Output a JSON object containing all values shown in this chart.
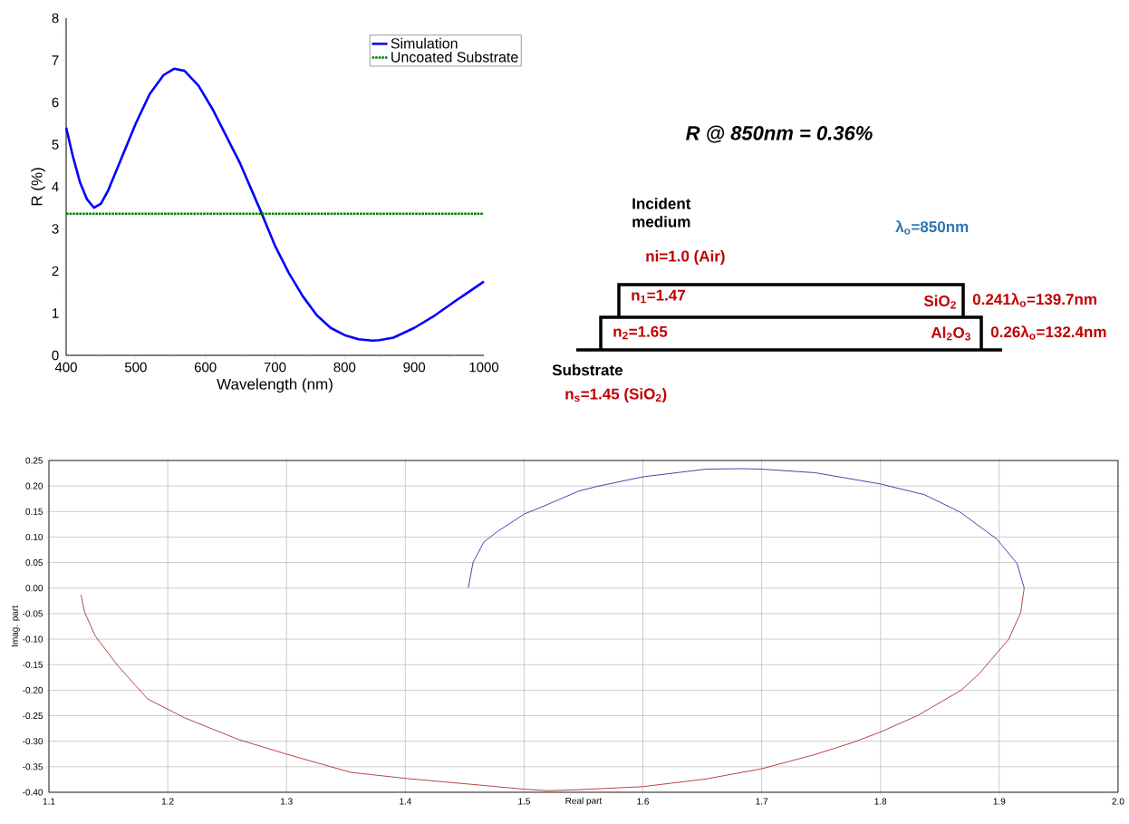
{
  "chart_data": [
    {
      "type": "line",
      "xlabel": "Wavelength (nm)",
      "ylabel": "R (%)",
      "xlim": [
        400,
        1000
      ],
      "ylim": [
        0,
        8
      ],
      "xticks": [
        400,
        500,
        600,
        700,
        800,
        900,
        1000
      ],
      "yticks": [
        0,
        1,
        2,
        3,
        4,
        5,
        6,
        7,
        8
      ],
      "legend": "top right",
      "series": [
        {
          "name": "Simulation",
          "color": "#0000ff",
          "line_style": "solid",
          "x": [
            400,
            410,
            420,
            430,
            440,
            450,
            460,
            480,
            500,
            520,
            540,
            555,
            570,
            590,
            610,
            630,
            650,
            680,
            700,
            720,
            740,
            760,
            780,
            800,
            820,
            840,
            850,
            870,
            900,
            930,
            960,
            1000
          ],
          "values": [
            5.4,
            4.7,
            4.1,
            3.7,
            3.5,
            3.6,
            3.9,
            4.7,
            5.5,
            6.2,
            6.65,
            6.8,
            6.75,
            6.4,
            5.85,
            5.2,
            4.55,
            3.4,
            2.6,
            1.95,
            1.4,
            0.95,
            0.65,
            0.48,
            0.38,
            0.35,
            0.36,
            0.42,
            0.65,
            0.95,
            1.3,
            1.75
          ]
        },
        {
          "name": "Uncoated Substrate",
          "color": "#008000",
          "line_style": "dotted",
          "x": [
            400,
            1000
          ],
          "values": [
            3.36,
            3.36
          ]
        }
      ]
    },
    {
      "type": "other",
      "annotations": [
        "R @ 850nm = 0.36%",
        "Incident medium",
        "ni=1.0 (Air)",
        "λ$_{o}$=850nm",
        "n$_{1}$=1.47",
        "SiO$_{2}$",
        "0.241λ$_{o}$=139.7nm",
        "n$_{2}$=1.65",
        "Al$_{2}$O$_{3}$",
        "0.26λ$_{o}$=132.4nm",
        "Substrate",
        "n$_{s}$=1.45 (SiO$_{2}$)"
      ]
    },
    {
      "type": "line",
      "xlabel": "Real part",
      "ylabel": "Imag. part",
      "xlim": [
        1.1,
        2.0
      ],
      "ylim": [
        -0.4,
        0.25
      ],
      "grid": true,
      "xticks": [
        1.1,
        1.2,
        1.3,
        1.4,
        1.5,
        1.6,
        1.7,
        1.8,
        1.9,
        {
          "value": 2.0,
          "label": "2.0"
        }
      ],
      "yticks": [
        {
          "value": -0.4,
          "label": "-0.40"
        },
        -0.35,
        {
          "value": -0.3,
          "label": "-0.30"
        },
        -0.25,
        {
          "value": -0.2,
          "label": "-0.20"
        },
        -0.15,
        {
          "value": -0.1,
          "label": "-0.10"
        },
        -0.05,
        {
          "value": 0,
          "label": "0.00"
        },
        0.05,
        {
          "value": 0.1,
          "label": "0.10"
        },
        0.15,
        {
          "value": 0.2,
          "label": "0.20"
        },
        0.25
      ],
      "series": [
        {
          "color": "#3333a0",
          "x": [
            1.453,
            1.457,
            1.466,
            1.477,
            1.5,
            1.519,
            1.53,
            1.546,
            1.561,
            1.6,
            1.653,
            1.684,
            1.7,
            1.745,
            1.8,
            1.837,
            1.867,
            1.898,
            1.915,
            1.921
          ],
          "values": [
            0.0,
            0.05,
            0.09,
            0.11,
            0.145,
            0.163,
            0.174,
            0.19,
            0.199,
            0.218,
            0.233,
            0.234,
            0.233,
            0.226,
            0.204,
            0.183,
            0.149,
            0.096,
            0.048,
            0.0
          ]
        },
        {
          "color": "#b03030",
          "x": [
            1.921,
            1.918,
            1.908,
            1.883,
            1.868,
            1.831,
            1.8,
            1.776,
            1.745,
            1.7,
            1.653,
            1.6,
            1.546,
            1.52,
            1.5,
            1.463,
            1.401,
            1.354,
            1.301,
            1.26,
            1.214,
            1.183,
            1.158,
            1.139,
            1.13,
            1.127
          ],
          "values": [
            0.0,
            -0.048,
            -0.1,
            -0.168,
            -0.2,
            -0.25,
            -0.282,
            -0.303,
            -0.326,
            -0.354,
            -0.374,
            -0.389,
            -0.395,
            -0.397,
            -0.394,
            -0.386,
            -0.373,
            -0.361,
            -0.326,
            -0.297,
            -0.254,
            -0.217,
            -0.152,
            -0.094,
            -0.047,
            -0.013
          ]
        }
      ]
    }
  ]
}
